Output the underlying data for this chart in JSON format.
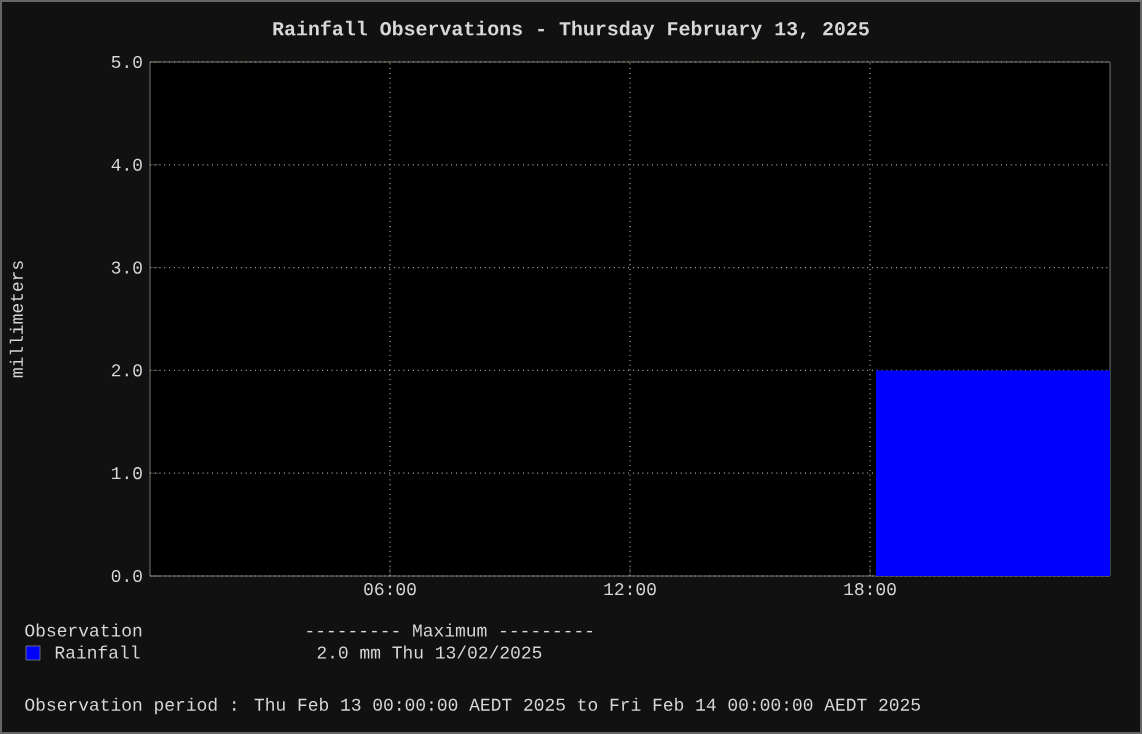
{
  "chart_data": {
    "type": "area",
    "title": "Rainfall Observations - Thursday February 13, 2025",
    "ylabel": "millimeters",
    "x": [
      18.15,
      24
    ],
    "series": [
      {
        "name": "Rainfall",
        "color": "#0000ff",
        "values": [
          2.0,
          2.0
        ]
      }
    ],
    "xlim": [
      0,
      24
    ],
    "xticks": [
      {
        "value": 6,
        "label": "06:00"
      },
      {
        "value": 12,
        "label": "12:00"
      },
      {
        "value": 18,
        "label": "18:00"
      }
    ],
    "ylim": [
      0,
      5
    ],
    "yticks": [
      {
        "value": 0,
        "label": "0.0"
      },
      {
        "value": 1,
        "label": "1.0"
      },
      {
        "value": 2,
        "label": "2.0"
      },
      {
        "value": 3,
        "label": "3.0"
      },
      {
        "value": 4,
        "label": "4.0"
      },
      {
        "value": 5,
        "label": "5.0"
      }
    ],
    "grid": true,
    "legend": "bottom left",
    "annotations": [
      "Observation",
      "--------- Maximum ---------",
      "2.0 mm  Thu 13/02/2025",
      "Observation period : Thu Feb 13 00:00:00 AEDT 2025 to Fri Feb 14 00:00:00 AEDT 2025"
    ]
  }
}
